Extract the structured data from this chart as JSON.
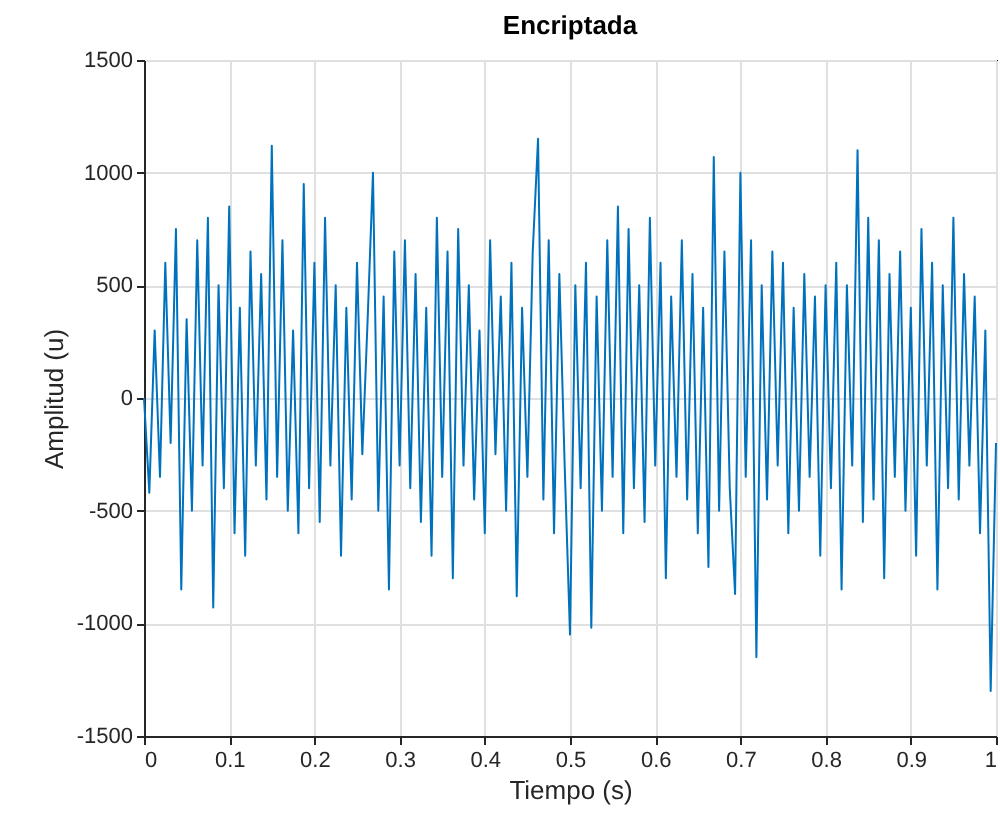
{
  "chart_data": {
    "type": "line",
    "title": "Encriptada",
    "xlabel": "Tiempo (s)",
    "ylabel": "Amplitud (u)",
    "x": [
      0,
      0.00625,
      0.0125,
      0.01875,
      0.025,
      0.03125,
      0.0375,
      0.04375,
      0.05,
      0.05625,
      0.0625,
      0.06875,
      0.075,
      0.08125,
      0.0875,
      0.09375,
      0.1,
      0.10625,
      0.1125,
      0.11875,
      0.125,
      0.13125,
      0.1375,
      0.14375,
      0.15,
      0.15625,
      0.1625,
      0.16875,
      0.175,
      0.18125,
      0.1875,
      0.19375,
      0.2,
      0.20625,
      0.2125,
      0.21875,
      0.225,
      0.23125,
      0.2375,
      0.24375,
      0.25,
      0.25625,
      0.2625,
      0.26875,
      0.275,
      0.28125,
      0.2875,
      0.29375,
      0.3,
      0.30625,
      0.3125,
      0.31875,
      0.325,
      0.33125,
      0.3375,
      0.34375,
      0.35,
      0.35625,
      0.3625,
      0.36875,
      0.375,
      0.38125,
      0.3875,
      0.39375,
      0.4,
      0.40625,
      0.4125,
      0.41875,
      0.425,
      0.43125,
      0.4375,
      0.44375,
      0.45,
      0.45625,
      0.4625,
      0.46875,
      0.475,
      0.48125,
      0.4875,
      0.49375,
      0.5,
      0.50625,
      0.5125,
      0.51875,
      0.525,
      0.53125,
      0.5375,
      0.54375,
      0.55,
      0.55625,
      0.5625,
      0.56875,
      0.575,
      0.58125,
      0.5875,
      0.59375,
      0.6,
      0.60625,
      0.6125,
      0.61875,
      0.625,
      0.63125,
      0.6375,
      0.64375,
      0.65,
      0.65625,
      0.6625,
      0.66875,
      0.675,
      0.68125,
      0.6875,
      0.69375,
      0.7,
      0.70625,
      0.7125,
      0.71875,
      0.725,
      0.73125,
      0.7375,
      0.74375,
      0.75,
      0.75625,
      0.7625,
      0.76875,
      0.775,
      0.78125,
      0.7875,
      0.79375,
      0.8,
      0.80625,
      0.8125,
      0.81875,
      0.825,
      0.83125,
      0.8375,
      0.84375,
      0.85,
      0.85625,
      0.8625,
      0.86875,
      0.875,
      0.88125,
      0.8875,
      0.89375,
      0.9,
      0.90625,
      0.9125,
      0.91875,
      0.925,
      0.93125,
      0.9375,
      0.94375,
      0.95,
      0.95625,
      0.9625,
      0.96875,
      0.975,
      0.98125,
      0.9875,
      0.99375,
      1
    ],
    "values": [
      0,
      -420,
      300,
      -350,
      600,
      -200,
      750,
      -850,
      350,
      -500,
      700,
      -300,
      800,
      -930,
      500,
      -400,
      850,
      -600,
      400,
      -700,
      650,
      -300,
      550,
      -450,
      1120,
      -350,
      700,
      -500,
      300,
      -600,
      950,
      -400,
      600,
      -550,
      800,
      -300,
      500,
      -700,
      400,
      -450,
      600,
      -250,
      350,
      1000,
      -500,
      450,
      -850,
      650,
      -300,
      700,
      -400,
      550,
      -550,
      400,
      -700,
      800,
      -350,
      650,
      -800,
      750,
      -300,
      500,
      -450,
      300,
      -600,
      700,
      -250,
      450,
      -500,
      600,
      -880,
      400,
      -350,
      650,
      1150,
      -450,
      700,
      -600,
      550,
      -300,
      -1050,
      500,
      -400,
      600,
      -1020,
      450,
      -500,
      700,
      -350,
      850,
      -600,
      750,
      -400,
      500,
      -550,
      800,
      -300,
      600,
      -800,
      450,
      -350,
      700,
      -450,
      550,
      -600,
      400,
      -750,
      1070,
      -500,
      650,
      -400,
      -870,
      1000,
      -350,
      700,
      -1150,
      500,
      -450,
      650,
      -300,
      600,
      -600,
      400,
      -500,
      550,
      -350,
      450,
      -700,
      500,
      -400,
      600,
      -850,
      500,
      -300,
      1100,
      -550,
      800,
      -450,
      700,
      -800,
      550,
      -350,
      650,
      -500,
      400,
      -700,
      750,
      -300,
      600,
      -850,
      500,
      -400,
      800,
      -450,
      550,
      -300,
      450,
      -600,
      300,
      -1300,
      -200
    ],
    "color": "#0072bd",
    "xlim": [
      0,
      1
    ],
    "ylim": [
      -1500,
      1500
    ],
    "xticks": [
      0,
      0.1,
      0.2,
      0.3,
      0.4,
      0.5,
      0.6,
      0.7,
      0.8,
      0.9,
      1
    ],
    "yticks": [
      -1500,
      -1000,
      -500,
      0,
      500,
      1000,
      1500
    ],
    "grid": true
  }
}
